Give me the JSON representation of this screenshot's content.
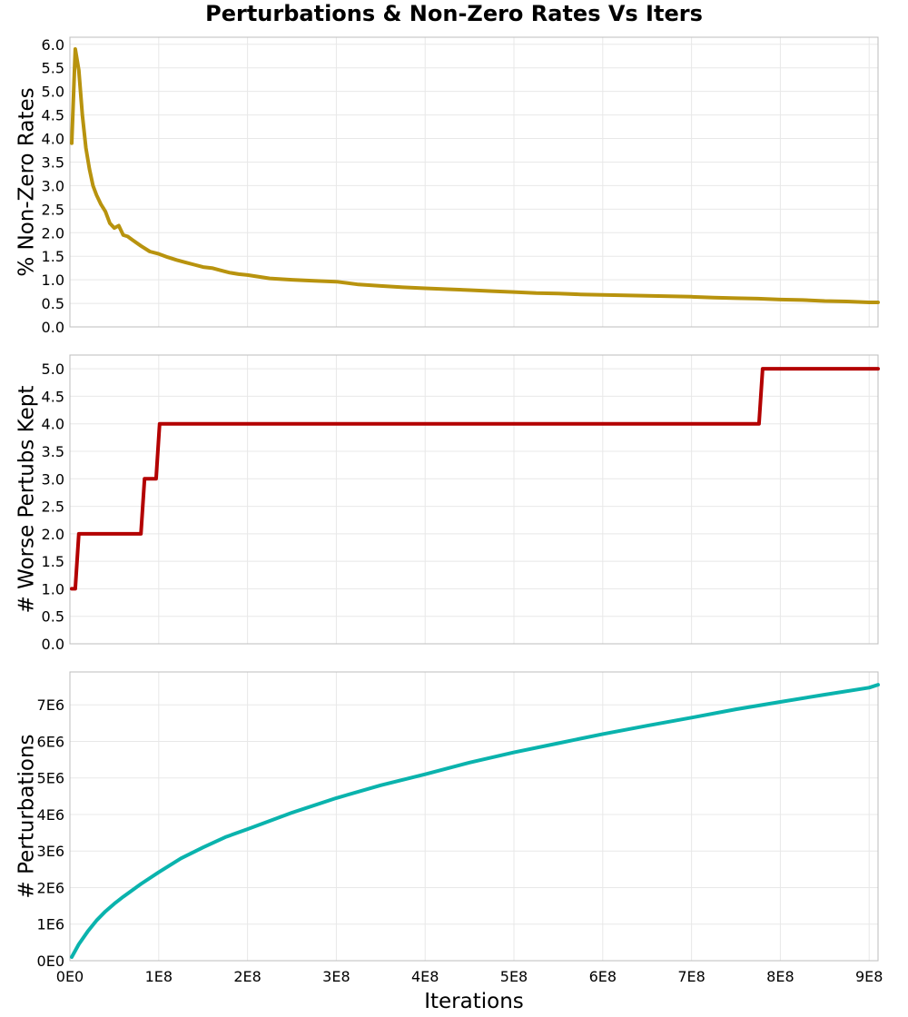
{
  "chart_data": {
    "title": "Perturbations & Non-Zero Rates Vs Iters",
    "xlabel": "Iterations",
    "x_ticks": [
      "0E0",
      "1E8",
      "2E8",
      "3E8",
      "4E8",
      "5E8",
      "6E8",
      "7E8",
      "8E8",
      "9E8"
    ],
    "xlim": [
      0,
      910000000
    ],
    "panels": [
      {
        "type": "line",
        "ylabel": "% Non-Zero Rates",
        "ylim": [
          0,
          6.15
        ],
        "y_ticks": [
          "0.0",
          "0.5",
          "1.0",
          "1.5",
          "2.0",
          "2.5",
          "3.0",
          "3.5",
          "4.0",
          "4.5",
          "5.0",
          "5.5",
          "6.0"
        ],
        "y_tick_values": [
          0,
          0.5,
          1,
          1.5,
          2,
          2.5,
          3,
          3.5,
          4,
          4.5,
          5,
          5.5,
          6
        ],
        "color": "#b8930e",
        "series": [
          {
            "name": "% Non-Zero Rates",
            "x": [
              2000000,
              6000000,
              10000000,
              14000000,
              18000000,
              22000000,
              26000000,
              30000000,
              35000000,
              40000000,
              45000000,
              50000000,
              55000000,
              60000000,
              65000000,
              70000000,
              80000000,
              90000000,
              100000000,
              110000000,
              120000000,
              130000000,
              140000000,
              150000000,
              160000000,
              170000000,
              180000000,
              190000000,
              200000000,
              225000000,
              250000000,
              275000000,
              300000000,
              325000000,
              350000000,
              375000000,
              400000000,
              425000000,
              450000000,
              475000000,
              500000000,
              525000000,
              550000000,
              575000000,
              600000000,
              625000000,
              650000000,
              675000000,
              700000000,
              725000000,
              750000000,
              775000000,
              800000000,
              825000000,
              850000000,
              875000000,
              900000000,
              910000000
            ],
            "y": [
              3.9,
              5.9,
              5.45,
              4.5,
              3.8,
              3.35,
              3.0,
              2.8,
              2.6,
              2.45,
              2.2,
              2.1,
              2.15,
              1.95,
              1.92,
              1.85,
              1.72,
              1.6,
              1.55,
              1.48,
              1.42,
              1.37,
              1.32,
              1.27,
              1.25,
              1.2,
              1.15,
              1.12,
              1.1,
              1.03,
              1.0,
              0.98,
              0.96,
              0.9,
              0.87,
              0.84,
              0.82,
              0.8,
              0.78,
              0.76,
              0.74,
              0.72,
              0.71,
              0.69,
              0.68,
              0.67,
              0.66,
              0.65,
              0.64,
              0.62,
              0.61,
              0.6,
              0.58,
              0.57,
              0.55,
              0.54,
              0.52,
              0.52
            ]
          }
        ]
      },
      {
        "type": "line",
        "ylabel": "# Worse Pertubs Kept",
        "ylim": [
          0,
          5.25
        ],
        "y_ticks": [
          "0.0",
          "0.5",
          "1.0",
          "1.5",
          "2.0",
          "2.5",
          "3.0",
          "3.5",
          "4.0",
          "4.5",
          "5.0"
        ],
        "y_tick_values": [
          0,
          0.5,
          1,
          1.5,
          2,
          2.5,
          3,
          3.5,
          4,
          4.5,
          5
        ],
        "color": "#b30000",
        "series": [
          {
            "name": "# Worse Pertubs Kept",
            "x": [
              2000000,
              6000000,
              10000000,
              80000000,
              84000000,
              97000000,
              101000000,
              776000000,
              780000000,
              910000000
            ],
            "y": [
              1,
              1,
              2,
              2,
              3,
              3,
              4,
              4,
              5,
              5
            ]
          }
        ]
      },
      {
        "type": "line",
        "ylabel": "# Perturbations",
        "ylim": [
          0,
          7900000
        ],
        "y_ticks": [
          "0E0",
          "1E6",
          "2E6",
          "3E6",
          "4E6",
          "5E6",
          "6E6",
          "7E6"
        ],
        "y_tick_values": [
          0,
          1000000,
          2000000,
          3000000,
          4000000,
          5000000,
          6000000,
          7000000
        ],
        "color": "#0ab3ad",
        "series": [
          {
            "name": "# Perturbations",
            "x": [
              2000000,
              10000000,
              20000000,
              30000000,
              40000000,
              50000000,
              60000000,
              80000000,
              100000000,
              125000000,
              150000000,
              175000000,
              200000000,
              250000000,
              300000000,
              350000000,
              400000000,
              450000000,
              500000000,
              550000000,
              600000000,
              650000000,
              700000000,
              750000000,
              800000000,
              850000000,
              900000000,
              910000000
            ],
            "y": [
              100000,
              450000,
              800000,
              1100000,
              1350000,
              1560000,
              1750000,
              2100000,
              2420000,
              2800000,
              3100000,
              3380000,
              3600000,
              4050000,
              4450000,
              4800000,
              5100000,
              5420000,
              5700000,
              5950000,
              6200000,
              6430000,
              6650000,
              6880000,
              7080000,
              7280000,
              7470000,
              7550000
            ]
          }
        ]
      }
    ]
  }
}
